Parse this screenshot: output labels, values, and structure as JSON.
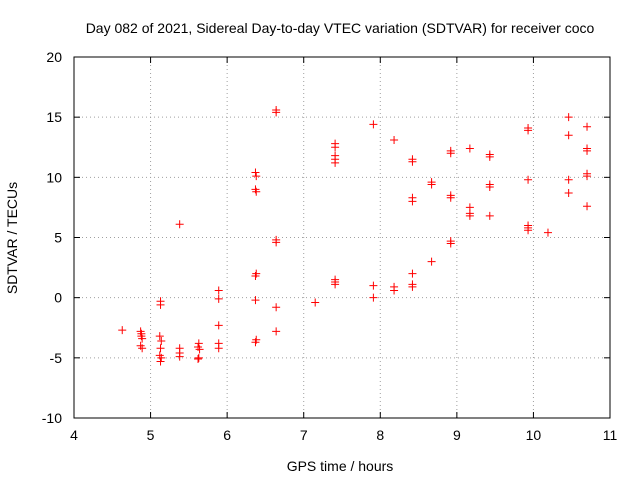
{
  "chart_data": {
    "type": "scatter",
    "title": "Day 082 of 2021, Sidereal Day-to-day VTEC variation (SDTVAR) for receiver coco",
    "xlabel": "GPS time / hours",
    "ylabel": "SDTVAR / TECUs",
    "xlim": [
      4,
      11
    ],
    "ylim": [
      -10,
      20
    ],
    "xticks": [
      "4",
      "5",
      "6",
      "7",
      "8",
      "9",
      "10",
      "11"
    ],
    "yticks": [
      "-10",
      "-5",
      "0",
      "5",
      "10",
      "15",
      "20"
    ],
    "grid": true,
    "marker": "+",
    "color": "#ff0000",
    "series": [
      {
        "name": "SDTVAR",
        "points": [
          [
            4.63,
            -2.7
          ],
          [
            4.87,
            -2.8
          ],
          [
            4.88,
            -3.0
          ],
          [
            4.88,
            -3.2
          ],
          [
            4.89,
            -3.4
          ],
          [
            4.87,
            -4.0
          ],
          [
            4.89,
            -4.2
          ],
          [
            5.13,
            -0.3
          ],
          [
            5.13,
            -0.6
          ],
          [
            5.12,
            -3.2
          ],
          [
            5.14,
            -3.6
          ],
          [
            5.13,
            -4.2
          ],
          [
            5.12,
            -4.8
          ],
          [
            5.14,
            -5.0
          ],
          [
            5.13,
            -5.3
          ],
          [
            5.38,
            6.1
          ],
          [
            5.38,
            -4.2
          ],
          [
            5.38,
            -4.6
          ],
          [
            5.38,
            -4.9
          ],
          [
            5.63,
            -3.8
          ],
          [
            5.62,
            -4.1
          ],
          [
            5.64,
            -4.3
          ],
          [
            5.63,
            -5.0
          ],
          [
            5.62,
            -5.1
          ],
          [
            5.89,
            0.6
          ],
          [
            5.89,
            -0.1
          ],
          [
            5.89,
            -2.3
          ],
          [
            5.89,
            -3.8
          ],
          [
            5.89,
            -4.2
          ],
          [
            6.37,
            10.4
          ],
          [
            6.38,
            10.1
          ],
          [
            6.37,
            9.0
          ],
          [
            6.38,
            8.8
          ],
          [
            6.38,
            2.0
          ],
          [
            6.37,
            1.8
          ],
          [
            6.37,
            -0.2
          ],
          [
            6.38,
            -3.5
          ],
          [
            6.37,
            -3.7
          ],
          [
            6.64,
            15.6
          ],
          [
            6.64,
            15.4
          ],
          [
            6.64,
            4.8
          ],
          [
            6.64,
            4.6
          ],
          [
            6.64,
            -0.8
          ],
          [
            6.64,
            -2.8
          ],
          [
            7.15,
            -0.4
          ],
          [
            7.41,
            12.8
          ],
          [
            7.41,
            12.5
          ],
          [
            7.41,
            11.8
          ],
          [
            7.41,
            11.5
          ],
          [
            7.41,
            11.2
          ],
          [
            7.41,
            1.5
          ],
          [
            7.41,
            1.3
          ],
          [
            7.41,
            1.1
          ],
          [
            7.91,
            14.4
          ],
          [
            7.91,
            1.0
          ],
          [
            7.91,
            0.0
          ],
          [
            8.18,
            13.1
          ],
          [
            8.18,
            0.9
          ],
          [
            8.18,
            0.6
          ],
          [
            8.42,
            11.5
          ],
          [
            8.42,
            11.3
          ],
          [
            8.42,
            8.3
          ],
          [
            8.42,
            8.0
          ],
          [
            8.42,
            2.0
          ],
          [
            8.42,
            1.1
          ],
          [
            8.42,
            0.9
          ],
          [
            8.67,
            9.6
          ],
          [
            8.67,
            9.4
          ],
          [
            8.67,
            3.0
          ],
          [
            8.92,
            12.2
          ],
          [
            8.92,
            12.0
          ],
          [
            8.92,
            8.5
          ],
          [
            8.92,
            8.3
          ],
          [
            8.92,
            4.7
          ],
          [
            8.92,
            4.5
          ],
          [
            9.17,
            12.4
          ],
          [
            9.17,
            7.5
          ],
          [
            9.17,
            7.0
          ],
          [
            9.17,
            6.8
          ],
          [
            9.43,
            11.9
          ],
          [
            9.43,
            11.7
          ],
          [
            9.43,
            9.4
          ],
          [
            9.43,
            9.2
          ],
          [
            9.43,
            6.8
          ],
          [
            9.93,
            14.1
          ],
          [
            9.93,
            13.9
          ],
          [
            9.93,
            9.8
          ],
          [
            9.93,
            6.0
          ],
          [
            9.93,
            5.8
          ],
          [
            9.93,
            5.6
          ],
          [
            10.19,
            5.4
          ],
          [
            10.46,
            15.0
          ],
          [
            10.46,
            13.5
          ],
          [
            10.46,
            9.8
          ],
          [
            10.46,
            8.7
          ],
          [
            10.7,
            14.2
          ],
          [
            10.7,
            12.4
          ],
          [
            10.7,
            12.2
          ],
          [
            10.7,
            10.3
          ],
          [
            10.7,
            10.1
          ],
          [
            10.7,
            7.6
          ]
        ]
      }
    ]
  }
}
